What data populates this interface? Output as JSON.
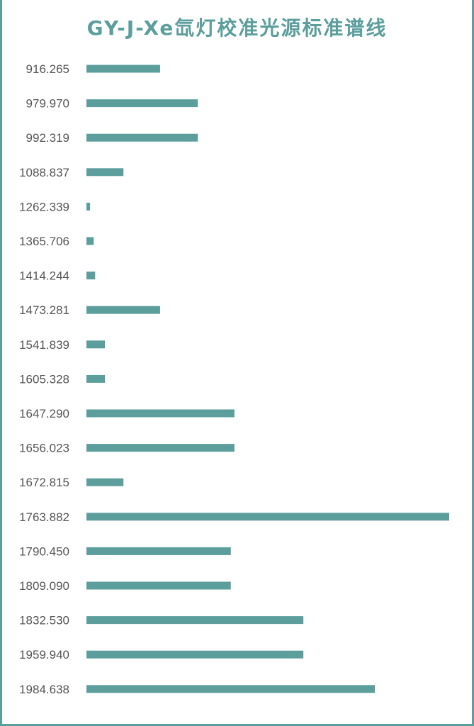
{
  "chart_data": {
    "type": "bar",
    "orientation": "horizontal",
    "title": "GY-J-Xe氙灯校准光源标准谱线",
    "xlabel": "",
    "ylabel": "",
    "xlim": [
      0,
      100
    ],
    "grid": false,
    "legend": "none",
    "color": "#5b9e9c",
    "categories": [
      "916.265",
      "979.970",
      "992.319",
      "1088.837",
      "1262.339",
      "1365.706",
      "1414.244",
      "1473.281",
      "1541.839",
      "1605.328",
      "1647.290",
      "1656.023",
      "1672.815",
      "1763.882",
      "1790.450",
      "1809.090",
      "1832.530",
      "1959.940",
      "1984.638"
    ],
    "values": [
      20.3,
      30.7,
      30.7,
      10.2,
      1,
      2,
      2.4,
      20.3,
      5.1,
      5.1,
      40.8,
      40.8,
      10.2,
      100,
      39.8,
      39.8,
      59.8,
      59.8,
      79.5
    ]
  }
}
